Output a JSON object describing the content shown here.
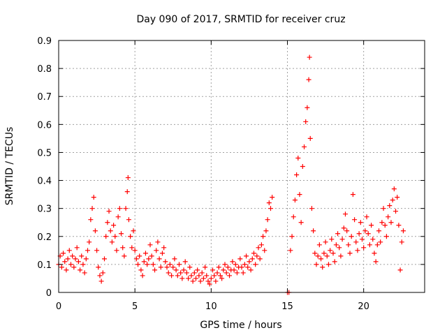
{
  "chart_data": {
    "type": "scatter",
    "title": "Day 090 of 2017, SRMTID for receiver cruz",
    "xlabel": "GPS time / hours",
    "ylabel": "SRMTID / TECUs",
    "xlim": [
      0,
      24
    ],
    "ylim": [
      0,
      0.9
    ],
    "xticks": [
      0,
      5,
      10,
      15,
      20
    ],
    "yticks": [
      0,
      0.1,
      0.2,
      0.3,
      0.4,
      0.5,
      0.6,
      0.7,
      0.8,
      0.9
    ],
    "grid": true,
    "marker": "+",
    "series": [
      {
        "name": "SRMTID",
        "color": "#ff0000",
        "points": [
          [
            0.0,
            0.1
          ],
          [
            0.1,
            0.13
          ],
          [
            0.2,
            0.09
          ],
          [
            0.3,
            0.14
          ],
          [
            0.4,
            0.11
          ],
          [
            0.5,
            0.08
          ],
          [
            0.6,
            0.12
          ],
          [
            0.7,
            0.15
          ],
          [
            0.8,
            0.1
          ],
          [
            0.9,
            0.13
          ],
          [
            1.0,
            0.09
          ],
          [
            1.1,
            0.12
          ],
          [
            1.2,
            0.16
          ],
          [
            1.3,
            0.11
          ],
          [
            1.4,
            0.08
          ],
          [
            1.5,
            0.13
          ],
          [
            1.6,
            0.1
          ],
          [
            1.7,
            0.07
          ],
          [
            1.8,
            0.12
          ],
          [
            1.9,
            0.15
          ],
          [
            2.0,
            0.18
          ],
          [
            2.1,
            0.26
          ],
          [
            2.2,
            0.3
          ],
          [
            2.3,
            0.34
          ],
          [
            2.4,
            0.22
          ],
          [
            2.5,
            0.15
          ],
          [
            2.6,
            0.09
          ],
          [
            2.7,
            0.06
          ],
          [
            2.8,
            0.04
          ],
          [
            2.9,
            0.07
          ],
          [
            3.0,
            0.12
          ],
          [
            3.1,
            0.2
          ],
          [
            3.2,
            0.25
          ],
          [
            3.3,
            0.29
          ],
          [
            3.4,
            0.22
          ],
          [
            3.5,
            0.18
          ],
          [
            3.6,
            0.24
          ],
          [
            3.7,
            0.2
          ],
          [
            3.8,
            0.15
          ],
          [
            3.9,
            0.27
          ],
          [
            4.0,
            0.3
          ],
          [
            4.1,
            0.21
          ],
          [
            4.2,
            0.16
          ],
          [
            4.3,
            0.13
          ],
          [
            4.4,
            0.3
          ],
          [
            4.5,
            0.36
          ],
          [
            4.55,
            0.41
          ],
          [
            4.6,
            0.26
          ],
          [
            4.7,
            0.2
          ],
          [
            4.8,
            0.16
          ],
          [
            4.9,
            0.22
          ],
          [
            5.0,
            0.15
          ],
          [
            5.1,
            0.12
          ],
          [
            5.2,
            0.1
          ],
          [
            5.3,
            0.13
          ],
          [
            5.4,
            0.08
          ],
          [
            5.5,
            0.06
          ],
          [
            5.6,
            0.11
          ],
          [
            5.7,
            0.14
          ],
          [
            5.8,
            0.1
          ],
          [
            5.9,
            0.12
          ],
          [
            6.0,
            0.17
          ],
          [
            6.1,
            0.13
          ],
          [
            6.2,
            0.1
          ],
          [
            6.3,
            0.08
          ],
          [
            6.4,
            0.15
          ],
          [
            6.5,
            0.18
          ],
          [
            6.6,
            0.12
          ],
          [
            6.7,
            0.09
          ],
          [
            6.8,
            0.14
          ],
          [
            6.9,
            0.16
          ],
          [
            7.0,
            0.11
          ],
          [
            7.1,
            0.09
          ],
          [
            7.2,
            0.07
          ],
          [
            7.3,
            0.1
          ],
          [
            7.4,
            0.06
          ],
          [
            7.5,
            0.09
          ],
          [
            7.6,
            0.12
          ],
          [
            7.7,
            0.08
          ],
          [
            7.8,
            0.06
          ],
          [
            7.9,
            0.1
          ],
          [
            8.0,
            0.07
          ],
          [
            8.1,
            0.05
          ],
          [
            8.2,
            0.08
          ],
          [
            8.3,
            0.11
          ],
          [
            8.4,
            0.07
          ],
          [
            8.5,
            0.05
          ],
          [
            8.6,
            0.09
          ],
          [
            8.7,
            0.06
          ],
          [
            8.8,
            0.04
          ],
          [
            8.9,
            0.07
          ],
          [
            9.0,
            0.05
          ],
          [
            9.1,
            0.08
          ],
          [
            9.2,
            0.06
          ],
          [
            9.3,
            0.04
          ],
          [
            9.4,
            0.07
          ],
          [
            9.5,
            0.05
          ],
          [
            9.6,
            0.09
          ],
          [
            9.7,
            0.06
          ],
          [
            9.8,
            0.04
          ],
          [
            9.9,
            0.03
          ],
          [
            10.0,
            0.05
          ],
          [
            10.1,
            0.08
          ],
          [
            10.2,
            0.06
          ],
          [
            10.3,
            0.04
          ],
          [
            10.4,
            0.07
          ],
          [
            10.5,
            0.09
          ],
          [
            10.6,
            0.06
          ],
          [
            10.7,
            0.05
          ],
          [
            10.8,
            0.08
          ],
          [
            10.9,
            0.1
          ],
          [
            11.0,
            0.07
          ],
          [
            11.1,
            0.09
          ],
          [
            11.2,
            0.06
          ],
          [
            11.3,
            0.08
          ],
          [
            11.4,
            0.11
          ],
          [
            11.5,
            0.08
          ],
          [
            11.6,
            0.1
          ],
          [
            11.7,
            0.07
          ],
          [
            11.8,
            0.09
          ],
          [
            11.9,
            0.12
          ],
          [
            12.0,
            0.09
          ],
          [
            12.1,
            0.07
          ],
          [
            12.2,
            0.1
          ],
          [
            12.3,
            0.13
          ],
          [
            12.4,
            0.09
          ],
          [
            12.5,
            0.11
          ],
          [
            12.6,
            0.08
          ],
          [
            12.7,
            0.12
          ],
          [
            12.8,
            0.14
          ],
          [
            12.9,
            0.1
          ],
          [
            13.0,
            0.13
          ],
          [
            13.1,
            0.16
          ],
          [
            13.2,
            0.12
          ],
          [
            13.3,
            0.17
          ],
          [
            13.4,
            0.2
          ],
          [
            13.5,
            0.15
          ],
          [
            13.6,
            0.22
          ],
          [
            13.7,
            0.26
          ],
          [
            13.8,
            0.32
          ],
          [
            13.9,
            0.3
          ],
          [
            14.0,
            0.34
          ],
          [
            15.0,
            0.0
          ],
          [
            15.1,
            0.0
          ],
          [
            15.2,
            0.15
          ],
          [
            15.3,
            0.2
          ],
          [
            15.4,
            0.27
          ],
          [
            15.5,
            0.33
          ],
          [
            15.6,
            0.42
          ],
          [
            15.7,
            0.48
          ],
          [
            15.8,
            0.35
          ],
          [
            15.9,
            0.25
          ],
          [
            16.0,
            0.45
          ],
          [
            16.1,
            0.52
          ],
          [
            16.2,
            0.61
          ],
          [
            16.3,
            0.66
          ],
          [
            16.4,
            0.76
          ],
          [
            16.45,
            0.84
          ],
          [
            16.5,
            0.55
          ],
          [
            16.6,
            0.3
          ],
          [
            16.7,
            0.22
          ],
          [
            16.8,
            0.14
          ],
          [
            16.9,
            0.1
          ],
          [
            17.0,
            0.13
          ],
          [
            17.1,
            0.17
          ],
          [
            17.2,
            0.12
          ],
          [
            17.3,
            0.09
          ],
          [
            17.4,
            0.14
          ],
          [
            17.5,
            0.18
          ],
          [
            17.6,
            0.13
          ],
          [
            17.7,
            0.1
          ],
          [
            17.8,
            0.15
          ],
          [
            17.9,
            0.19
          ],
          [
            18.0,
            0.14
          ],
          [
            18.1,
            0.11
          ],
          [
            18.2,
            0.17
          ],
          [
            18.3,
            0.21
          ],
          [
            18.4,
            0.16
          ],
          [
            18.5,
            0.13
          ],
          [
            18.6,
            0.19
          ],
          [
            18.7,
            0.23
          ],
          [
            18.8,
            0.28
          ],
          [
            18.9,
            0.22
          ],
          [
            19.0,
            0.17
          ],
          [
            19.1,
            0.14
          ],
          [
            19.2,
            0.2
          ],
          [
            19.3,
            0.35
          ],
          [
            19.4,
            0.26
          ],
          [
            19.5,
            0.18
          ],
          [
            19.6,
            0.15
          ],
          [
            19.7,
            0.21
          ],
          [
            19.8,
            0.25
          ],
          [
            19.9,
            0.19
          ],
          [
            20.0,
            0.16
          ],
          [
            20.1,
            0.22
          ],
          [
            20.2,
            0.27
          ],
          [
            20.3,
            0.21
          ],
          [
            20.4,
            0.17
          ],
          [
            20.5,
            0.24
          ],
          [
            20.6,
            0.19
          ],
          [
            20.7,
            0.14
          ],
          [
            20.8,
            0.11
          ],
          [
            20.9,
            0.17
          ],
          [
            21.0,
            0.22
          ],
          [
            21.1,
            0.18
          ],
          [
            21.2,
            0.25
          ],
          [
            21.3,
            0.3
          ],
          [
            21.4,
            0.24
          ],
          [
            21.5,
            0.2
          ],
          [
            21.6,
            0.27
          ],
          [
            21.7,
            0.31
          ],
          [
            21.8,
            0.25
          ],
          [
            21.9,
            0.33
          ],
          [
            22.0,
            0.37
          ],
          [
            22.1,
            0.29
          ],
          [
            22.2,
            0.34
          ],
          [
            22.3,
            0.24
          ],
          [
            22.4,
            0.08
          ],
          [
            22.5,
            0.18
          ],
          [
            22.6,
            0.22
          ]
        ]
      }
    ]
  }
}
